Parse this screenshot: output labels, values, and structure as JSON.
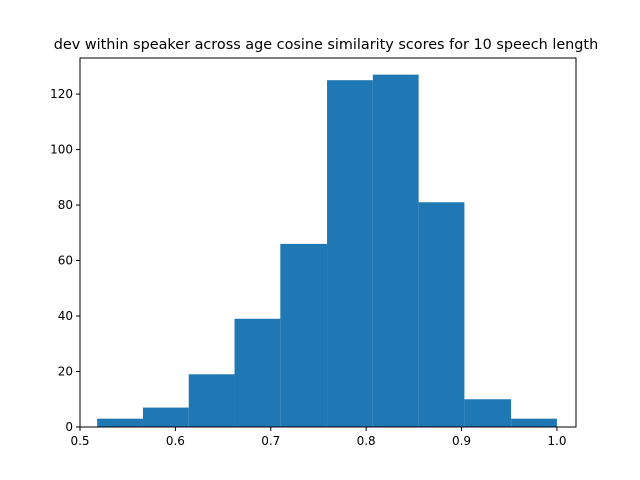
{
  "chart_data": {
    "type": "bar",
    "title": "dev within speaker across age cosine similarity scores for 10 speech length",
    "xlabel": "",
    "ylabel": "",
    "xlim": [
      0.5,
      1.02
    ],
    "ylim": [
      0,
      133
    ],
    "x_ticks": [
      0.5,
      0.6,
      0.7,
      0.8,
      0.9,
      1.0
    ],
    "x_tick_labels": [
      "0.5",
      "0.6",
      "0.7",
      "0.8",
      "0.9",
      "1.0"
    ],
    "y_ticks": [
      0,
      20,
      40,
      60,
      80,
      100,
      120
    ],
    "y_tick_labels": [
      "0",
      "20",
      "40",
      "60",
      "80",
      "100",
      "120"
    ],
    "bin_edges": [
      0.518,
      0.566,
      0.614,
      0.662,
      0.71,
      0.759,
      0.807,
      0.855,
      0.903,
      0.952,
      1.0
    ],
    "values": [
      3,
      7,
      19,
      39,
      66,
      125,
      127,
      81,
      10,
      3
    ],
    "color": "#1f77b4",
    "grid": false
  }
}
